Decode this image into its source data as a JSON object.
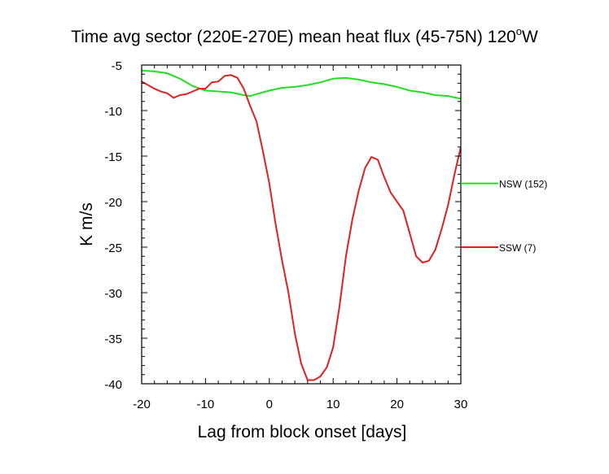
{
  "chart_data": {
    "type": "line",
    "title": "Time avg sector (220E-270E) mean heat flux (45-75N) 120",
    "title_superscript": "o",
    "title_suffix": "W",
    "xlabel": "Lag from block onset [days]",
    "ylabel": "K m/s",
    "xlim": [
      -20,
      30
    ],
    "ylim": [
      -40,
      -5
    ],
    "x_ticks": [
      -20,
      -10,
      0,
      10,
      20,
      30
    ],
    "y_ticks": [
      -5,
      -10,
      -15,
      -20,
      -25,
      -30,
      -35,
      -40
    ],
    "grid": false,
    "legend_placement": "right",
    "series": [
      {
        "name": "NSW (152)",
        "color": "#22dd22",
        "legend_value": -18,
        "points": [
          [
            -20,
            -5.6
          ],
          [
            -18,
            -5.7
          ],
          [
            -16,
            -5.9
          ],
          [
            -14,
            -6.5
          ],
          [
            -12,
            -7.3
          ],
          [
            -10,
            -7.8
          ],
          [
            -8,
            -7.9
          ],
          [
            -6,
            -8.0
          ],
          [
            -4,
            -8.3
          ],
          [
            -3,
            -8.4
          ],
          [
            -2,
            -8.2
          ],
          [
            0,
            -7.8
          ],
          [
            2,
            -7.5
          ],
          [
            4,
            -7.4
          ],
          [
            6,
            -7.2
          ],
          [
            8,
            -6.9
          ],
          [
            10,
            -6.5
          ],
          [
            12,
            -6.4
          ],
          [
            14,
            -6.6
          ],
          [
            16,
            -6.9
          ],
          [
            18,
            -7.1
          ],
          [
            20,
            -7.4
          ],
          [
            22,
            -7.8
          ],
          [
            24,
            -8.0
          ],
          [
            26,
            -8.3
          ],
          [
            28,
            -8.4
          ],
          [
            30,
            -8.7
          ]
        ]
      },
      {
        "name": "SSW (7)",
        "color": "#e02020",
        "legend_value": -25,
        "points": [
          [
            -20,
            -6.8
          ],
          [
            -19,
            -7.2
          ],
          [
            -18,
            -7.6
          ],
          [
            -17,
            -7.9
          ],
          [
            -16,
            -8.1
          ],
          [
            -15,
            -8.6
          ],
          [
            -14,
            -8.3
          ],
          [
            -13,
            -8.2
          ],
          [
            -12,
            -7.9
          ],
          [
            -11,
            -7.6
          ],
          [
            -10,
            -7.6
          ],
          [
            -9,
            -6.9
          ],
          [
            -8,
            -6.8
          ],
          [
            -7,
            -6.2
          ],
          [
            -6,
            -6.1
          ],
          [
            -5,
            -6.4
          ],
          [
            -4,
            -7.6
          ],
          [
            -3,
            -9.5
          ],
          [
            -2,
            -11.2
          ],
          [
            -1,
            -14.5
          ],
          [
            0,
            -18.0
          ],
          [
            1,
            -22.5
          ],
          [
            2,
            -26.5
          ],
          [
            3,
            -30.0
          ],
          [
            4,
            -34.5
          ],
          [
            5,
            -37.8
          ],
          [
            6,
            -39.6
          ],
          [
            7,
            -39.6
          ],
          [
            8,
            -39.2
          ],
          [
            9,
            -38.2
          ],
          [
            10,
            -36.0
          ],
          [
            11,
            -31.5
          ],
          [
            12,
            -26.0
          ],
          [
            13,
            -22.0
          ],
          [
            14,
            -18.8
          ],
          [
            15,
            -16.3
          ],
          [
            16,
            -15.1
          ],
          [
            17,
            -15.4
          ],
          [
            18,
            -17.3
          ],
          [
            19,
            -19.0
          ],
          [
            20,
            -20.0
          ],
          [
            21,
            -21.0
          ],
          [
            22,
            -23.5
          ],
          [
            23,
            -26.0
          ],
          [
            24,
            -26.7
          ],
          [
            25,
            -26.5
          ],
          [
            26,
            -25.3
          ],
          [
            27,
            -23.0
          ],
          [
            28,
            -20.4
          ],
          [
            29,
            -17.0
          ],
          [
            30,
            -14.0
          ]
        ]
      }
    ]
  }
}
